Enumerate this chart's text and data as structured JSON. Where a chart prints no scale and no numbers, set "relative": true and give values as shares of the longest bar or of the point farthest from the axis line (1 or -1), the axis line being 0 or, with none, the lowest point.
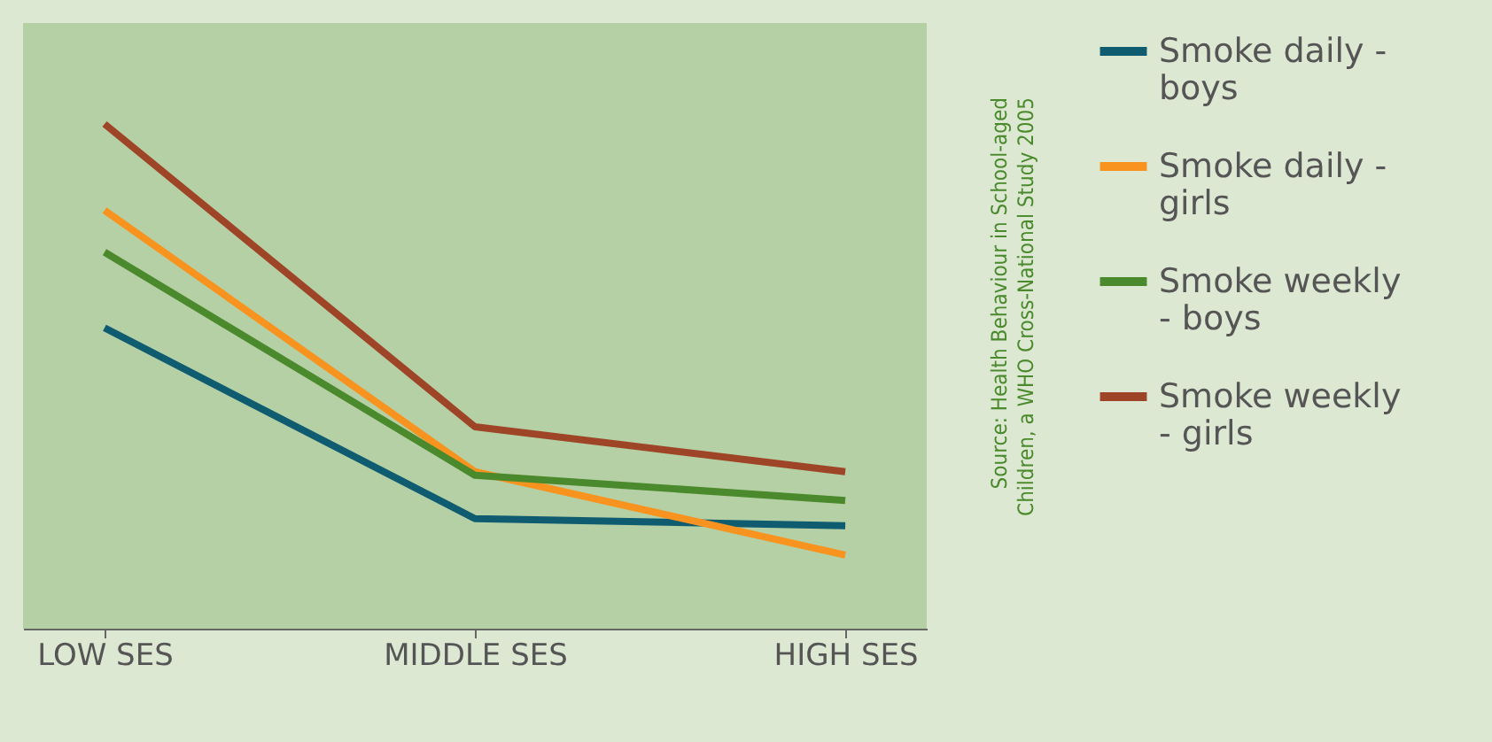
{
  "chart_data": {
    "type": "line",
    "relative": true,
    "categories": [
      "LOW SES",
      "MIDDLE SES",
      "HIGH SES"
    ],
    "series": [
      {
        "name": "Smoke daily - boys",
        "color": "#0f5b70",
        "values": [
          0.596,
          0.218,
          0.204
        ]
      },
      {
        "name": "Smoke daily - girls",
        "color": "#f7931e",
        "values": [
          0.829,
          0.311,
          0.146
        ]
      },
      {
        "name": "Smoke weekly - boys",
        "color": "#4a8a2c",
        "values": [
          0.746,
          0.304,
          0.254
        ]
      },
      {
        "name": "Smoke weekly - girls",
        "color": "#9e4528",
        "values": [
          1,
          0.4,
          0.311
        ]
      }
    ],
    "legend": "right",
    "grid": false,
    "marker": "none",
    "line_style": "solid",
    "annotations": [
      "Source: Health Behaviour in School-aged Children, a WHO Cross-National Study 2005"
    ]
  }
}
